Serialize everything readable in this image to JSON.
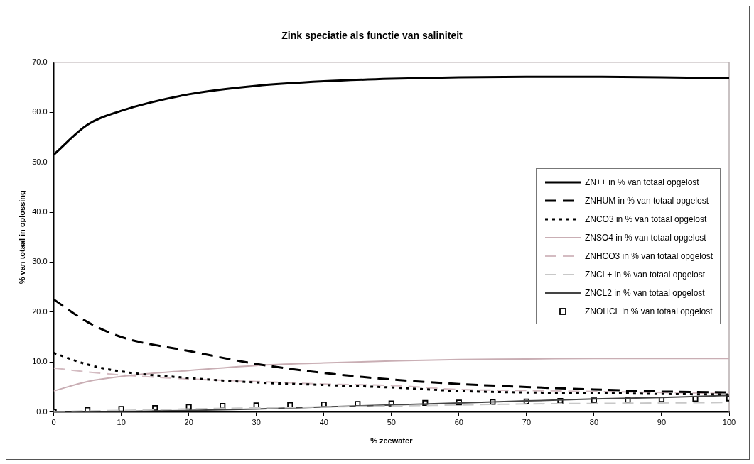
{
  "chart_data": {
    "type": "line",
    "title": "Zink speciatie als functie van saliniteit",
    "xlabel": "% zeewater",
    "ylabel": "% van totaal in oplossing",
    "xlim": [
      0,
      100
    ],
    "xticks": [
      0,
      10,
      20,
      30,
      40,
      50,
      60,
      70,
      80,
      90,
      100
    ],
    "ylim": [
      0,
      70
    ],
    "yticks": [
      {
        "value": 0,
        "label": "0.0"
      },
      {
        "value": 10,
        "label": "10.0"
      },
      {
        "value": 20,
        "label": "20.0"
      },
      {
        "value": 30,
        "label": "30.0"
      },
      {
        "value": 40,
        "label": "40.0"
      },
      {
        "value": 50,
        "label": "50.0"
      },
      {
        "value": 60,
        "label": "60.0"
      },
      {
        "value": 70,
        "label": "70.0"
      }
    ],
    "legend": "right",
    "series": [
      {
        "name": "ZN++ in % van totaal opgelost",
        "color": "#000000",
        "line_style": "solid",
        "x": [
          0,
          5,
          10,
          20,
          30,
          40,
          50,
          60,
          70,
          80,
          90,
          100
        ],
        "values": [
          51.5,
          57.5,
          60.3,
          63.6,
          65.3,
          66.2,
          66.7,
          67.0,
          67.1,
          67.1,
          67.0,
          66.8
        ]
      },
      {
        "name": "ZNHUM in % van totaal opgelost",
        "color": "#000000",
        "line_style": "dashed",
        "x": [
          0,
          5,
          10,
          20,
          30,
          40,
          50,
          60,
          70,
          80,
          90,
          100
        ],
        "values": [
          22.5,
          18.0,
          15.0,
          12.2,
          9.6,
          7.8,
          6.5,
          5.6,
          5.0,
          4.5,
          4.1,
          3.9
        ]
      },
      {
        "name": "ZNCO3 in % van totaal opgelost",
        "color": "#000000",
        "line_style": "dotted",
        "x": [
          0,
          5,
          10,
          20,
          30,
          40,
          50,
          60,
          70,
          80,
          90,
          100
        ],
        "values": [
          11.8,
          9.5,
          8.1,
          6.8,
          5.9,
          5.4,
          4.9,
          4.2,
          3.9,
          3.8,
          3.6,
          3.5
        ]
      },
      {
        "name": "ZNSO4 in % van totaal opgelost",
        "color": "#c9aeb4",
        "line_style": "solid",
        "x": [
          0,
          5,
          10,
          20,
          30,
          40,
          50,
          60,
          70,
          80,
          90,
          100
        ],
        "values": [
          4.2,
          6.1,
          7.1,
          8.3,
          9.3,
          9.8,
          10.2,
          10.5,
          10.6,
          10.7,
          10.7,
          10.7
        ]
      },
      {
        "name": "ZNHCO3 in % van totaal opgelost",
        "color": "#d4bcc2",
        "line_style": "dashed",
        "x": [
          0,
          5,
          10,
          20,
          30,
          40,
          50,
          60,
          70,
          80,
          90,
          100
        ],
        "values": [
          8.8,
          8.0,
          7.4,
          6.6,
          6.1,
          5.6,
          5.3,
          4.5,
          4.3,
          4.1,
          3.9,
          3.7
        ]
      },
      {
        "name": "ZNCL+ in % van totaal opgelost",
        "color": "#c8c8c8",
        "line_style": "dashed",
        "x": [
          0,
          5,
          10,
          20,
          30,
          40,
          50,
          60,
          70,
          80,
          90,
          100
        ],
        "values": [
          0,
          0.2,
          0.3,
          0.6,
          0.8,
          1.0,
          1.2,
          1.4,
          1.6,
          1.7,
          1.8,
          1.9
        ]
      },
      {
        "name": "ZNCL2 in % van totaal opgelost",
        "color": "#444444",
        "line_style": "solid",
        "x": [
          0,
          5,
          10,
          20,
          30,
          40,
          50,
          60,
          70,
          80,
          90,
          100
        ],
        "values": [
          0,
          0.0,
          0.1,
          0.3,
          0.6,
          1.0,
          1.4,
          1.8,
          2.2,
          2.6,
          2.9,
          3.3
        ]
      },
      {
        "name": "ZNOHCL in % van totaal opgelost",
        "type": "scatter",
        "color": "#000000",
        "marker": "square",
        "x": [
          0,
          5,
          10,
          15,
          20,
          25,
          30,
          35,
          40,
          45,
          50,
          55,
          60,
          65,
          70,
          75,
          80,
          85,
          90,
          95,
          100
        ],
        "values": [
          0,
          0.4,
          0.6,
          0.8,
          1.0,
          1.2,
          1.3,
          1.4,
          1.5,
          1.6,
          1.7,
          1.8,
          1.9,
          2.0,
          2.1,
          2.2,
          2.3,
          2.4,
          2.5,
          2.6,
          2.7
        ]
      }
    ]
  }
}
